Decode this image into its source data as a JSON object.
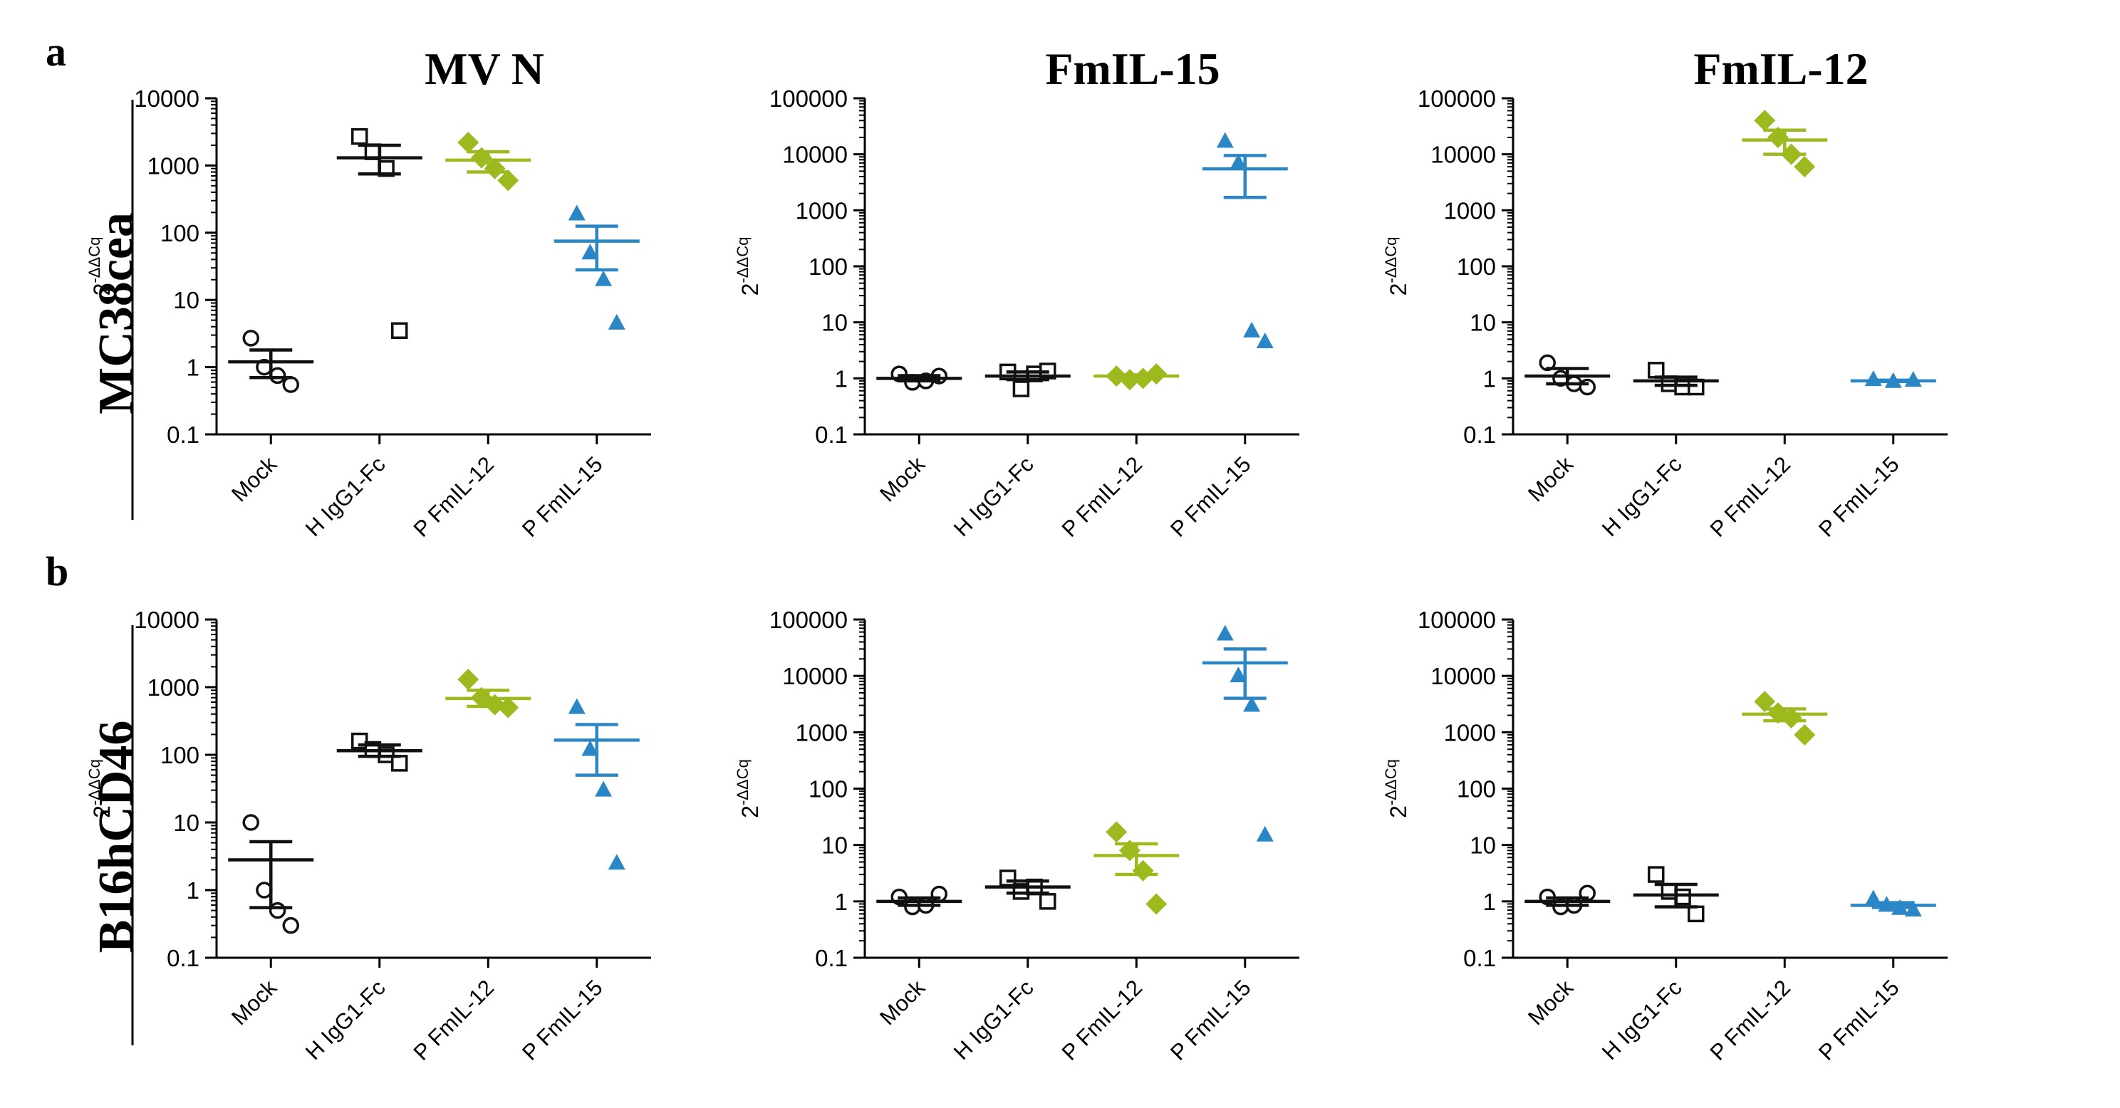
{
  "figure": {
    "panel_labels": [
      "a",
      "b"
    ],
    "row_labels": [
      "MC38cea",
      "B16hCD46"
    ],
    "column_titles": [
      "MV N",
      "FmIL-15",
      "FmIL-12"
    ],
    "ylabel_base": "2",
    "ylabel_exp": "-ΔΔCq"
  },
  "colors": {
    "Mock": "#111111",
    "H IgG1-Fc": "#111111",
    "P FmIL-12": "#9cba1e",
    "P FmIL-15": "#2b86c5"
  },
  "chart_data": [
    {
      "type": "scatter",
      "row": "MC38cea",
      "title": "MV N",
      "yscale": "log",
      "ylim": [
        0.1,
        10000
      ],
      "yticks": [
        "0.1",
        "1",
        "10",
        "100",
        "1000",
        "10000"
      ],
      "categories": [
        "Mock",
        "H IgG1-Fc",
        "P FmIL-12",
        "P FmIL-15"
      ],
      "series": [
        {
          "name": "Mock",
          "marker": "circle",
          "values": [
            2.7,
            1.0,
            0.75,
            0.55
          ],
          "mean": 1.2,
          "sem_low": 0.7,
          "sem_high": 1.8
        },
        {
          "name": "H IgG1-Fc",
          "marker": "square",
          "values": [
            2700,
            1600,
            900,
            3.5
          ],
          "mean": 1300,
          "sem_low": 750,
          "sem_high": 2000
        },
        {
          "name": "P FmIL-12",
          "marker": "diamond",
          "values": [
            2200,
            1300,
            900,
            600
          ],
          "mean": 1200,
          "sem_low": 800,
          "sem_high": 1600
        },
        {
          "name": "P FmIL-15",
          "marker": "triangle",
          "values": [
            190,
            50,
            20,
            4.5
          ],
          "mean": 75,
          "sem_low": 28,
          "sem_high": 125
        }
      ]
    },
    {
      "type": "scatter",
      "row": "MC38cea",
      "title": "FmIL-15",
      "yscale": "log",
      "ylim": [
        0.1,
        100000
      ],
      "yticks": [
        "0.1",
        "1",
        "10",
        "100",
        "1000",
        "10000",
        "100000"
      ],
      "categories": [
        "Mock",
        "H IgG1-Fc",
        "P FmIL-12",
        "P FmIL-15"
      ],
      "series": [
        {
          "name": "Mock",
          "marker": "circle",
          "values": [
            1.2,
            0.85,
            0.9,
            1.1
          ],
          "mean": 1.0,
          "sem_low": 0.9,
          "sem_high": 1.12
        },
        {
          "name": "H IgG1-Fc",
          "marker": "square",
          "values": [
            1.3,
            0.65,
            1.2,
            1.35
          ],
          "mean": 1.1,
          "sem_low": 0.95,
          "sem_high": 1.3
        },
        {
          "name": "P FmIL-12",
          "marker": "diamond",
          "values": [
            1.1,
            0.95,
            1.0,
            1.2
          ],
          "mean": 1.1,
          "sem_low": 1.0,
          "sem_high": 1.15
        },
        {
          "name": "P FmIL-15",
          "marker": "triangle",
          "values": [
            17000,
            7000,
            7,
            4.5
          ],
          "mean": 5500,
          "sem_low": 1700,
          "sem_high": 9500
        }
      ]
    },
    {
      "type": "scatter",
      "row": "MC38cea",
      "title": "FmIL-12",
      "yscale": "log",
      "ylim": [
        0.1,
        100000
      ],
      "yticks": [
        "0.1",
        "1",
        "10",
        "100",
        "1000",
        "10000",
        "100000"
      ],
      "categories": [
        "Mock",
        "H IgG1-Fc",
        "P FmIL-12",
        "P FmIL-15"
      ],
      "series": [
        {
          "name": "Mock",
          "marker": "circle",
          "values": [
            1.9,
            1.0,
            0.8,
            0.7
          ],
          "mean": 1.1,
          "sem_low": 0.8,
          "sem_high": 1.5
        },
        {
          "name": "H IgG1-Fc",
          "marker": "square",
          "values": [
            1.4,
            0.8,
            0.7,
            0.7
          ],
          "mean": 0.9,
          "sem_low": 0.75,
          "sem_high": 1.05
        },
        {
          "name": "P FmIL-12",
          "marker": "diamond",
          "values": [
            40000,
            20000,
            10000,
            6000
          ],
          "mean": 18000,
          "sem_low": 10000,
          "sem_high": 27000
        },
        {
          "name": "P FmIL-15",
          "marker": "triangle",
          "values": [
            0.95,
            0.88,
            0.92
          ],
          "mean": 0.9,
          "sem_low": 0.88,
          "sem_high": 0.93
        }
      ]
    },
    {
      "type": "scatter",
      "row": "B16hCD46",
      "title": "MV N",
      "yscale": "log",
      "ylim": [
        0.1,
        10000
      ],
      "yticks": [
        "0.1",
        "1",
        "10",
        "100",
        "1000",
        "10000"
      ],
      "categories": [
        "Mock",
        "H IgG1-Fc",
        "P FmIL-12",
        "P FmIL-15"
      ],
      "series": [
        {
          "name": "Mock",
          "marker": "circle",
          "values": [
            10,
            1.0,
            0.5,
            0.3
          ],
          "mean": 2.8,
          "sem_low": 0.55,
          "sem_high": 5.2
        },
        {
          "name": "H IgG1-Fc",
          "marker": "square",
          "values": [
            160,
            120,
            100,
            75
          ],
          "mean": 115,
          "sem_low": 95,
          "sem_high": 140
        },
        {
          "name": "P FmIL-12",
          "marker": "diamond",
          "values": [
            1300,
            700,
            550,
            500
          ],
          "mean": 680,
          "sem_low": 520,
          "sem_high": 900
        },
        {
          "name": "P FmIL-15",
          "marker": "triangle",
          "values": [
            500,
            120,
            30,
            2.5
          ],
          "mean": 165,
          "sem_low": 50,
          "sem_high": 280
        }
      ]
    },
    {
      "type": "scatter",
      "row": "B16hCD46",
      "title": "FmIL-15",
      "yscale": "log",
      "ylim": [
        0.1,
        100000
      ],
      "yticks": [
        "0.1",
        "1",
        "10",
        "100",
        "1000",
        "10000",
        "100000"
      ],
      "categories": [
        "Mock",
        "H IgG1-Fc",
        "P FmIL-12",
        "P FmIL-15"
      ],
      "series": [
        {
          "name": "Mock",
          "marker": "circle",
          "values": [
            1.2,
            0.8,
            0.85,
            1.35
          ],
          "mean": 1.0,
          "sem_low": 0.85,
          "sem_high": 1.15
        },
        {
          "name": "H IgG1-Fc",
          "marker": "square",
          "values": [
            2.6,
            1.5,
            1.8,
            1.0
          ],
          "mean": 1.8,
          "sem_low": 1.4,
          "sem_high": 2.3
        },
        {
          "name": "P FmIL-12",
          "marker": "diamond",
          "values": [
            17,
            8,
            3.5,
            0.9
          ],
          "mean": 6.5,
          "sem_low": 3.0,
          "sem_high": 10.5
        },
        {
          "name": "P FmIL-15",
          "marker": "triangle",
          "values": [
            55000,
            10000,
            3000,
            15
          ],
          "mean": 17000,
          "sem_low": 4000,
          "sem_high": 30000
        }
      ]
    },
    {
      "type": "scatter",
      "row": "B16hCD46",
      "title": "FmIL-12",
      "yscale": "log",
      "ylim": [
        0.1,
        100000
      ],
      "yticks": [
        "0.1",
        "1",
        "10",
        "100",
        "1000",
        "10000",
        "100000"
      ],
      "categories": [
        "Mock",
        "H IgG1-Fc",
        "P FmIL-12",
        "P FmIL-15"
      ],
      "series": [
        {
          "name": "Mock",
          "marker": "circle",
          "values": [
            1.2,
            0.8,
            0.85,
            1.4
          ],
          "mean": 1.0,
          "sem_low": 0.85,
          "sem_high": 1.15
        },
        {
          "name": "H IgG1-Fc",
          "marker": "square",
          "values": [
            3.0,
            1.5,
            1.2,
            0.6
          ],
          "mean": 1.3,
          "sem_low": 0.8,
          "sem_high": 2.0
        },
        {
          "name": "P FmIL-12",
          "marker": "diamond",
          "values": [
            3500,
            2200,
            1800,
            900
          ],
          "mean": 2100,
          "sem_low": 1600,
          "sem_high": 2600
        },
        {
          "name": "P FmIL-15",
          "marker": "triangle",
          "values": [
            1.1,
            0.85,
            0.75,
            0.7
          ],
          "mean": 0.85,
          "sem_low": 0.78,
          "sem_high": 0.95
        }
      ]
    }
  ]
}
